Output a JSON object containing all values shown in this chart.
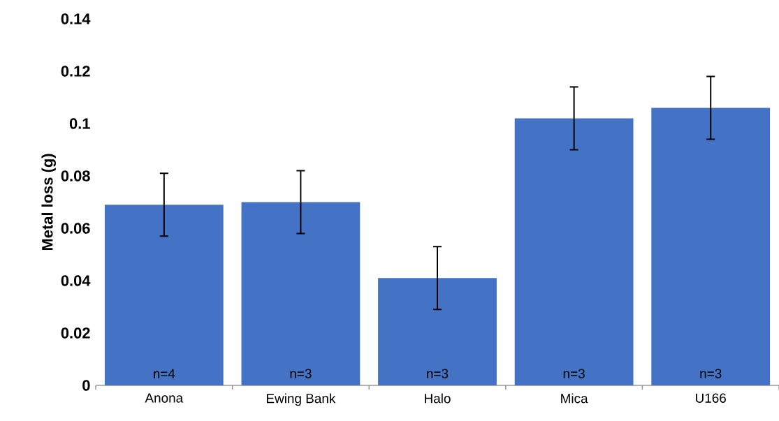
{
  "chart_data": {
    "type": "bar",
    "ylabel": "Metal loss (g)",
    "categories": [
      "Anona",
      "Ewing Bank",
      "Halo",
      "Mica",
      "U166"
    ],
    "values": [
      0.069,
      0.07,
      0.041,
      0.102,
      0.106
    ],
    "errors": [
      0.012,
      0.012,
      0.012,
      0.012,
      0.012
    ],
    "color": "#4472c4",
    "ylim": [
      0,
      0.14
    ],
    "yticks": [
      0,
      0.02,
      0.04,
      0.06,
      0.08,
      0.1,
      0.12,
      0.14
    ],
    "annotations": [
      "n=4",
      "n=3",
      "n=3",
      "n=3",
      "n=3"
    ]
  }
}
